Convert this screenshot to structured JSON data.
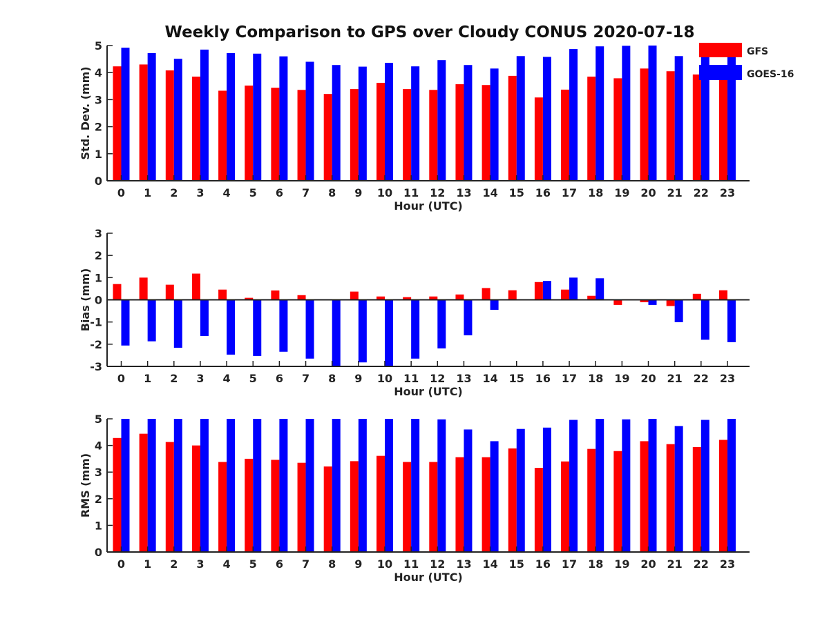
{
  "title": "Weekly Comparison to GPS over Cloudy CONUS 2020-07-18",
  "colors": {
    "gfs": "#ff0000",
    "goes": "#0000ff",
    "axis": "#222222"
  },
  "legend": {
    "placement": "top-right",
    "entries": [
      "GFS",
      "GOES-16"
    ]
  },
  "chart_data": [
    {
      "type": "bar",
      "categories": [
        "0",
        "1",
        "2",
        "3",
        "4",
        "5",
        "6",
        "7",
        "8",
        "9",
        "10",
        "11",
        "12",
        "13",
        "14",
        "15",
        "16",
        "17",
        "18",
        "19",
        "20",
        "21",
        "22",
        "23"
      ],
      "xlabel": "Hour (UTC)",
      "ylabel": "Std. Dev. (mm)",
      "ylim": [
        0,
        5
      ],
      "yticks": [
        "0",
        "1",
        "2",
        "3",
        "4",
        "5"
      ],
      "grid": false,
      "series": [
        {
          "name": "GFS",
          "values": [
            4.23,
            4.3,
            4.08,
            3.85,
            3.33,
            3.52,
            3.44,
            3.36,
            3.21,
            3.39,
            3.62,
            3.39,
            3.36,
            3.57,
            3.54,
            3.88,
            3.08,
            3.37,
            3.85,
            3.79,
            4.15,
            4.05,
            3.93,
            3.78
          ]
        },
        {
          "name": "GOES-16",
          "values": [
            4.92,
            4.72,
            4.51,
            4.85,
            4.72,
            4.7,
            4.6,
            4.4,
            4.28,
            4.22,
            4.36,
            4.23,
            4.46,
            4.28,
            4.15,
            4.61,
            4.58,
            4.87,
            4.97,
            4.99,
            5.0,
            4.61,
            4.58,
            4.58
          ]
        }
      ]
    },
    {
      "type": "bar",
      "categories": [
        "0",
        "1",
        "2",
        "3",
        "4",
        "5",
        "6",
        "7",
        "8",
        "9",
        "10",
        "11",
        "12",
        "13",
        "14",
        "15",
        "16",
        "17",
        "18",
        "19",
        "20",
        "21",
        "22",
        "23"
      ],
      "xlabel": "Hour (UTC)",
      "ylabel": "Bias (mm)",
      "ylim": [
        -3,
        3
      ],
      "yticks": [
        "-3",
        "-2",
        "-1",
        "0",
        "1",
        "2",
        "3"
      ],
      "grid": false,
      "series": [
        {
          "name": "GFS",
          "values": [
            0.71,
            1.0,
            0.68,
            1.18,
            0.46,
            0.09,
            0.42,
            0.21,
            0.02,
            0.37,
            0.15,
            0.12,
            0.15,
            0.24,
            0.53,
            0.43,
            0.8,
            0.46,
            0.18,
            -0.23,
            -0.11,
            -0.28,
            0.27,
            0.43
          ]
        },
        {
          "name": "GOES-16",
          "values": [
            -2.06,
            -1.87,
            -2.16,
            -1.63,
            -2.47,
            -2.53,
            -2.34,
            -2.65,
            -3.0,
            -2.82,
            -3.0,
            -2.65,
            -2.19,
            -1.6,
            -0.45,
            0.02,
            0.85,
            1.0,
            0.97,
            0.0,
            -0.23,
            -1.01,
            -1.8,
            -1.91
          ]
        }
      ]
    },
    {
      "type": "bar",
      "categories": [
        "0",
        "1",
        "2",
        "3",
        "4",
        "5",
        "6",
        "7",
        "8",
        "9",
        "10",
        "11",
        "12",
        "13",
        "14",
        "15",
        "16",
        "17",
        "18",
        "19",
        "20",
        "21",
        "22",
        "23"
      ],
      "xlabel": "Hour (UTC)",
      "ylabel": "RMS (mm)",
      "ylim": [
        0,
        5
      ],
      "yticks": [
        "0",
        "1",
        "2",
        "3",
        "4",
        "5"
      ],
      "grid": false,
      "series": [
        {
          "name": "GFS",
          "values": [
            4.28,
            4.44,
            4.13,
            4.0,
            3.38,
            3.5,
            3.46,
            3.35,
            3.21,
            3.41,
            3.61,
            3.38,
            3.38,
            3.56,
            3.56,
            3.89,
            3.16,
            3.4,
            3.87,
            3.79,
            4.16,
            4.05,
            3.94,
            4.21
          ]
        },
        {
          "name": "GOES-16",
          "values": [
            5.0,
            5.0,
            5.0,
            5.0,
            5.0,
            5.0,
            5.0,
            5.0,
            5.0,
            5.0,
            5.0,
            5.0,
            4.98,
            4.6,
            4.16,
            4.62,
            4.67,
            4.96,
            5.0,
            4.98,
            5.0,
            4.73,
            4.96,
            5.0
          ]
        }
      ]
    }
  ]
}
